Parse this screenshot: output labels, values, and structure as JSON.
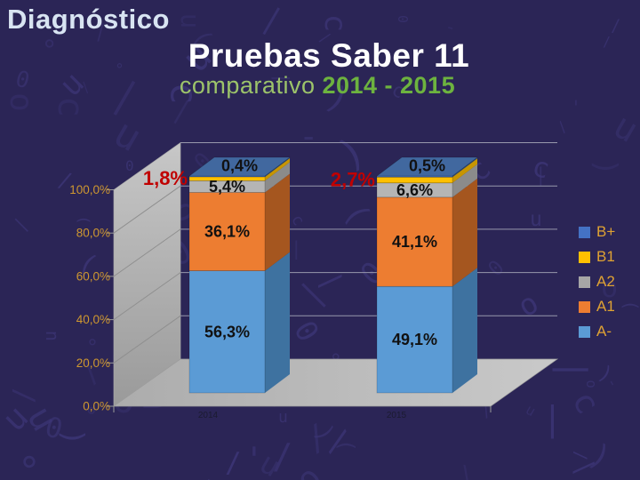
{
  "slide": {
    "kicker": "Diagnóstico",
    "title": "Pruebas Saber 11",
    "subtitle": {
      "regular": "comparativo ",
      "bold": "2014 - 2015"
    }
  },
  "chart_data": {
    "type": "bar",
    "variant": "3d-stacked-column",
    "stacked": true,
    "categories": [
      "2014",
      "2015"
    ],
    "series": [
      {
        "name": "A-",
        "color": "#5B9BD5",
        "side": "#3E72A0",
        "values": [
          56.3,
          49.1
        ],
        "labels": [
          "56,3%",
          "49,1%"
        ],
        "label_placement": "inside"
      },
      {
        "name": "A1",
        "color": "#ED7D31",
        "side": "#A5561F",
        "values": [
          36.1,
          41.1
        ],
        "labels": [
          "36,1%",
          "41,1%"
        ],
        "label_placement": "inside"
      },
      {
        "name": "A2",
        "color": "#B5B5B5",
        "side": "#8B8B8B",
        "values": [
          5.4,
          6.6
        ],
        "labels": [
          "5,4%",
          "6,6%"
        ],
        "label_placement": "inside"
      },
      {
        "name": "B1",
        "color": "#FFC000",
        "side": "#C79500",
        "values": [
          1.8,
          2.7
        ],
        "labels": [
          "1,8%",
          "2,7%"
        ],
        "label_placement": "callout-left",
        "label_color": "#C00000"
      },
      {
        "name": "B+",
        "color": "#4472C4",
        "side": "#2E4A70",
        "top": "#41689F",
        "values": [
          0.4,
          0.5
        ],
        "labels": [
          "0,4%",
          "0,5%"
        ],
        "label_placement": "top-face"
      }
    ],
    "legend_order": [
      "B+",
      "B1",
      "A2",
      "A1",
      "A-"
    ],
    "legend_colors": {
      "B+": "#4472C4",
      "B1": "#FFC000",
      "A2": "#A6A6A6",
      "A1": "#ED7D31",
      "A-": "#5B9BD5"
    },
    "y_ticks": [
      "100,0%",
      "80,0%",
      "60,0%",
      "40,0%",
      "20,0%",
      "0,0%"
    ],
    "ylim": [
      0,
      100
    ],
    "grid": true,
    "legend_position": "right"
  },
  "colors": {
    "background": "#2B2556",
    "wall_top": "#C7C7C7",
    "wall_bottom": "#9A9A9A",
    "floor_left": "#ACACAC",
    "floor_right": "#C9C9C9",
    "gridline": "#9898AC",
    "wall_gridline": "#8F8F8F",
    "axis_tick": "#9A9A9A",
    "axis_label": "#CE9730",
    "legend_text": "#DFA233",
    "data_label": "#111111",
    "category_label": "#1B1B30",
    "callout_red": "#C00000",
    "title": "#FFFFFF",
    "kicker": "#D8E4F2",
    "subtitle_regular": "#9CC36A",
    "subtitle_bold": "#6DB33F",
    "pattern_glyph": "#3E3779"
  },
  "background_pattern_chars": "0 o c ) ( | \\ / - u ∘"
}
